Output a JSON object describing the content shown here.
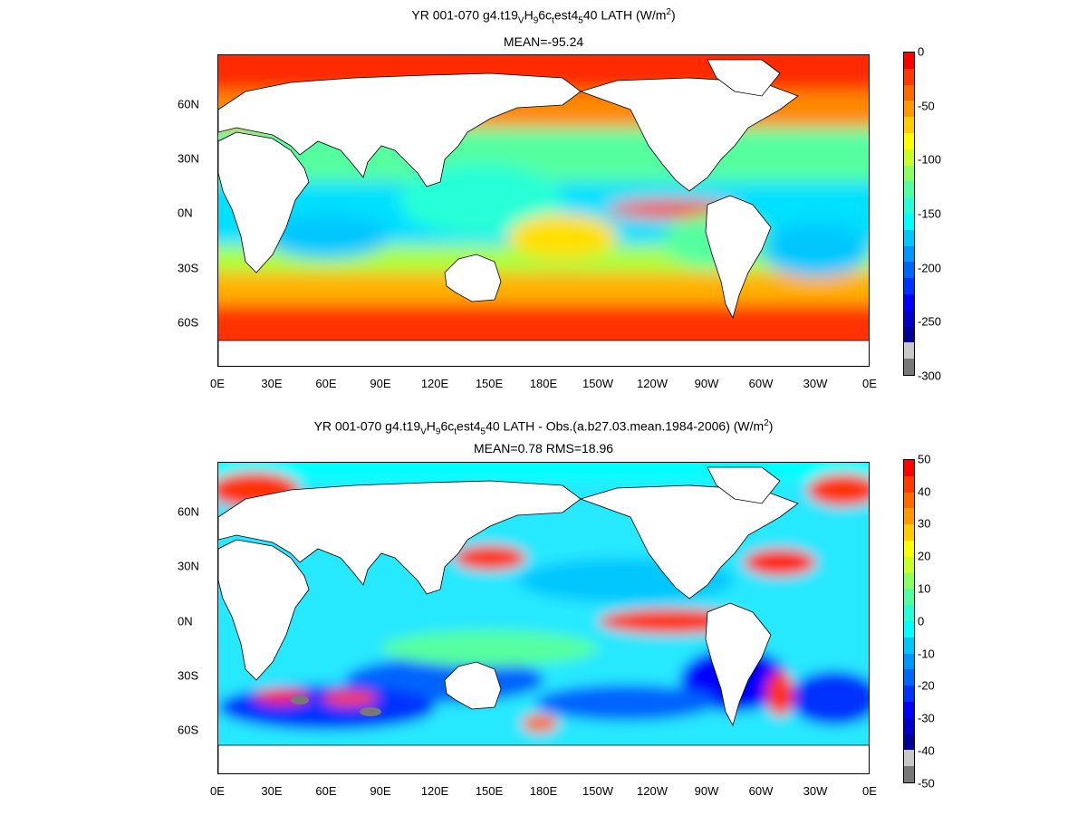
{
  "panels": [
    {
      "title_parts": [
        "YR 001-070 g4.t19",
        "V",
        "H",
        "9",
        "6c",
        "t",
        "est4",
        "5",
        "40  LATH (W/m",
        "2",
        ")"
      ],
      "subtitle": "MEAN=-95.24",
      "colorbar": {
        "labels": [
          "0",
          "-50",
          "-100",
          "-150",
          "-200",
          "-250",
          "-300"
        ],
        "colors": [
          "#ff0000",
          "#ff3a00",
          "#ff6a00",
          "#ff9a00",
          "#ffcc00",
          "#ffff00",
          "#c8ff28",
          "#8cff64",
          "#55ffa0",
          "#28ffd7",
          "#00ffff",
          "#00c8ff",
          "#0096ff",
          "#0064ff",
          "#0032ff",
          "#0000ff",
          "#0000c8",
          "#000096",
          "#c8c8c8",
          "#787878"
        ]
      }
    },
    {
      "title_parts": [
        "YR 001-070 g4.t19",
        "V",
        "H",
        "9",
        "6c",
        "t",
        "est4",
        "5",
        "40 LATH - Obs.(a.b27.03.mean.1984-2006) (W/m",
        "2",
        ")"
      ],
      "subtitle": "MEAN=0.78 RMS=18.96",
      "colorbar": {
        "labels": [
          "50",
          "40",
          "30",
          "20",
          "10",
          "0",
          "-10",
          "-20",
          "-30",
          "-40",
          "-50"
        ],
        "colors": [
          "#ff0000",
          "#ff3a00",
          "#ff6a00",
          "#ff9a00",
          "#ffcc00",
          "#ffff00",
          "#c8ff28",
          "#8cff64",
          "#55ffa0",
          "#28ffd7",
          "#00ffff",
          "#00c8ff",
          "#0096ff",
          "#0064ff",
          "#0032ff",
          "#0000ff",
          "#0000c8",
          "#000096",
          "#c8c8c8",
          "#787878"
        ]
      }
    }
  ],
  "axes": {
    "lat_labels": [
      "60N",
      "30N",
      "0N",
      "30S",
      "60S"
    ],
    "lon_labels": [
      "0E",
      "30E",
      "60E",
      "90E",
      "120E",
      "150E",
      "180E",
      "150W",
      "120W",
      "90W",
      "60W",
      "30W",
      "0E"
    ]
  }
}
